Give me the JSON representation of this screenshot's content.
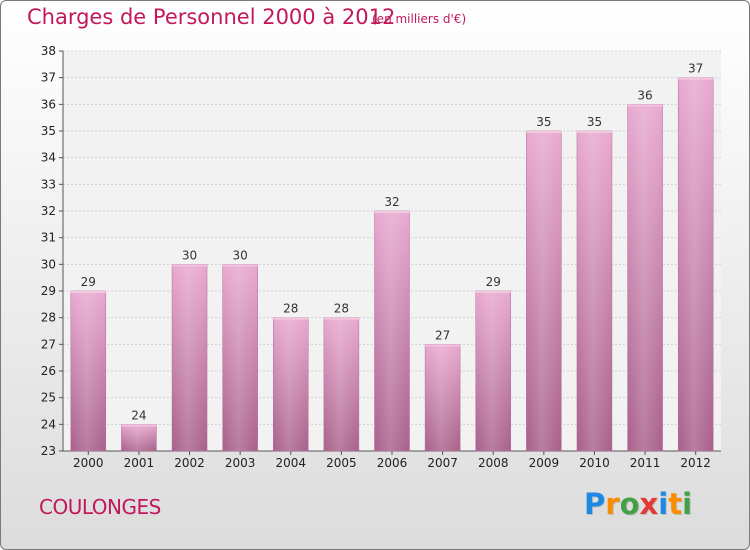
{
  "header": {
    "title": "Charges de Personnel 2000 à 2012",
    "subtitle": "(en milliers d'€)"
  },
  "commune": "COULONGES",
  "logo": {
    "text": "Proxiti",
    "letters": [
      {
        "char": "P",
        "color": "#1e88e5"
      },
      {
        "char": "r",
        "color": "#fb8c00"
      },
      {
        "char": "o",
        "color": "#43a047"
      },
      {
        "char": "x",
        "color": "#e53935"
      },
      {
        "char": "i",
        "color": "#1e88e5"
      },
      {
        "char": "t",
        "color": "#fb8c00"
      },
      {
        "char": "i",
        "color": "#43a047"
      }
    ]
  },
  "chart_data": {
    "type": "bar",
    "title": "Charges de Personnel 2000 à 2012",
    "subtitle": "(en milliers d'€)",
    "categories": [
      "2000",
      "2001",
      "2002",
      "2003",
      "2004",
      "2005",
      "2006",
      "2007",
      "2008",
      "2009",
      "2010",
      "2011",
      "2012"
    ],
    "values": [
      29,
      24,
      30,
      30,
      28,
      28,
      32,
      27,
      29,
      35,
      35,
      36,
      37
    ],
    "ylim": [
      23,
      38
    ],
    "yticks": [
      23,
      24,
      25,
      26,
      27,
      28,
      29,
      30,
      31,
      32,
      33,
      34,
      35,
      36,
      37,
      38
    ],
    "grid": true,
    "bar_color": "#c9709e",
    "xlabel": "",
    "ylabel": ""
  }
}
